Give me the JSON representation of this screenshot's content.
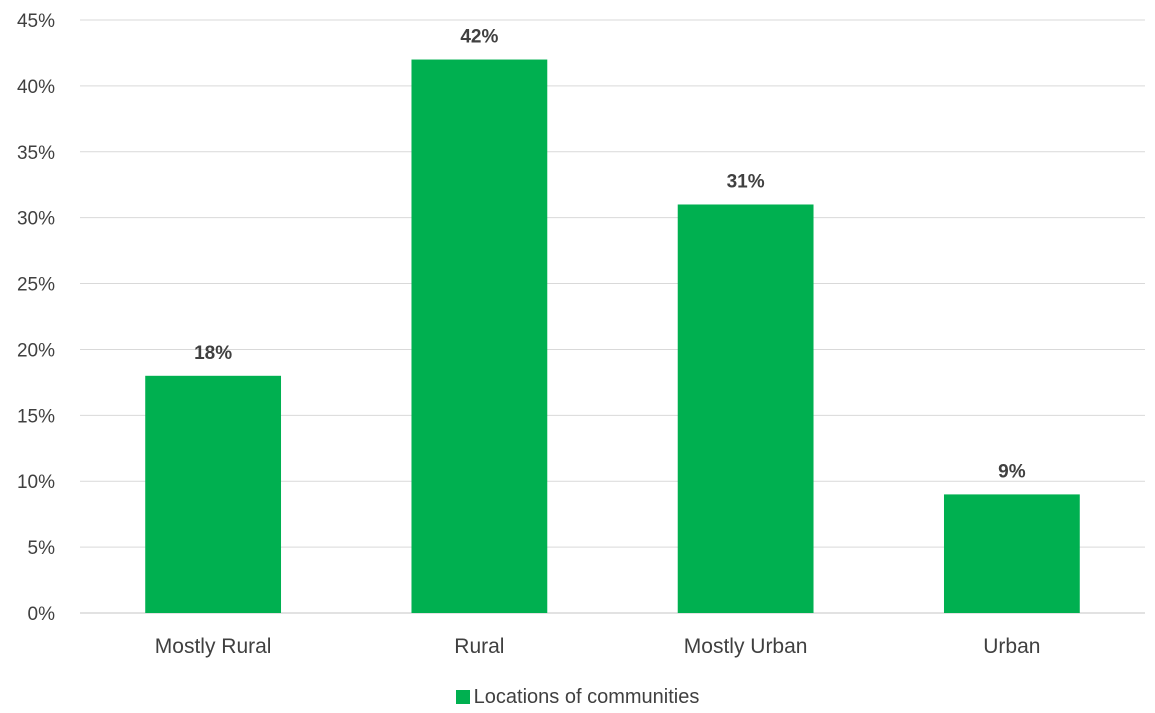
{
  "chart_data": {
    "type": "bar",
    "title": "",
    "xlabel": "",
    "ylabel": "",
    "categories": [
      "Mostly Rural",
      "Rural",
      "Mostly Urban",
      "Urban"
    ],
    "series": [
      {
        "name": "Locations of communities",
        "values": [
          18,
          42,
          31,
          9
        ],
        "labels": [
          "18%",
          "42%",
          "31%",
          "9%"
        ]
      }
    ],
    "ylim": [
      0,
      45
    ],
    "yticks": [
      0,
      5,
      10,
      15,
      20,
      25,
      30,
      35,
      40,
      45
    ],
    "ytick_labels": [
      "0%",
      "5%",
      "10%",
      "15%",
      "20%",
      "25%",
      "30%",
      "35%",
      "40%",
      "45%"
    ],
    "grid": true,
    "legend_position": "bottom",
    "colors": {
      "bar": "#00B050",
      "grid": "#D9D9D9",
      "text": "#404040"
    }
  }
}
